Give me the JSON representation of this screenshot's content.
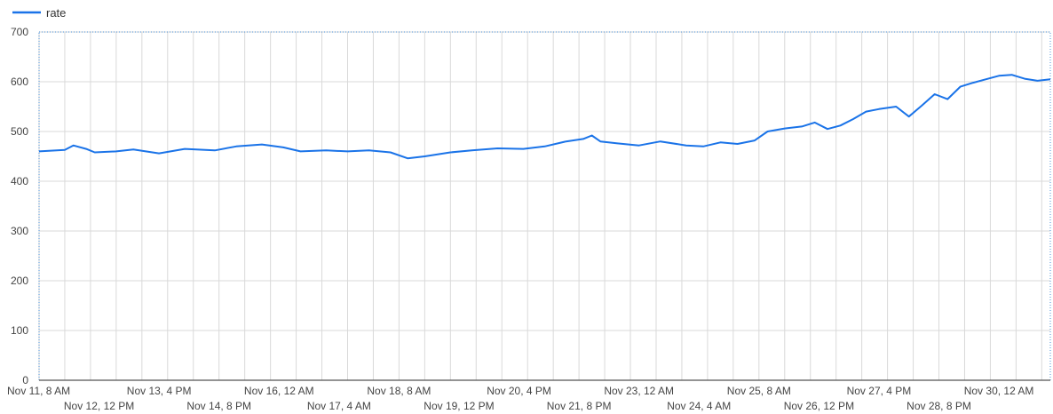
{
  "chart_data": {
    "type": "line",
    "title": "",
    "xlabel": "",
    "ylabel": "",
    "ylim": [
      0,
      700
    ],
    "yticks": [
      0,
      100,
      200,
      300,
      400,
      500,
      600,
      700
    ],
    "grid": true,
    "legend_position": "top-left",
    "colors": {
      "series": "#1a73e8"
    },
    "x_tick_labels": [
      "Nov 11, 8 AM",
      "Nov 12, 12 PM",
      "Nov 13, 4 PM",
      "Nov 14, 8 PM",
      "Nov 16, 12 AM",
      "Nov 17, 4 AM",
      "Nov 18, 8 AM",
      "Nov 19, 12 PM",
      "Nov 20, 4 PM",
      "Nov 21, 8 PM",
      "Nov 23, 12 AM",
      "Nov 24, 4 AM",
      "Nov 25, 8 AM",
      "Nov 26, 12 PM",
      "Nov 27, 4 PM",
      "Nov 28, 8 PM",
      "Nov 30, 12 AM"
    ],
    "x_start": "2020-11-11T08:00",
    "x_end": "2020-12-01T00:00",
    "x_step_hours": 2,
    "series": [
      {
        "name": "rate",
        "points": [
          [
            "2020-11-11T08:00",
            460
          ],
          [
            "2020-11-11T20:00",
            463
          ],
          [
            "2020-11-12T00:00",
            472
          ],
          [
            "2020-11-12T06:00",
            465
          ],
          [
            "2020-11-12T10:00",
            458
          ],
          [
            "2020-11-12T20:00",
            460
          ],
          [
            "2020-11-13T04:00",
            464
          ],
          [
            "2020-11-13T16:00",
            456
          ],
          [
            "2020-11-14T04:00",
            465
          ],
          [
            "2020-11-14T18:00",
            462
          ],
          [
            "2020-11-15T04:00",
            470
          ],
          [
            "2020-11-15T16:00",
            474
          ],
          [
            "2020-11-16T02:00",
            468
          ],
          [
            "2020-11-16T10:00",
            460
          ],
          [
            "2020-11-16T22:00",
            462
          ],
          [
            "2020-11-17T08:00",
            460
          ],
          [
            "2020-11-17T18:00",
            462
          ],
          [
            "2020-11-18T04:00",
            458
          ],
          [
            "2020-11-18T12:00",
            446
          ],
          [
            "2020-11-18T20:00",
            450
          ],
          [
            "2020-11-19T08:00",
            458
          ],
          [
            "2020-11-19T18:00",
            462
          ],
          [
            "2020-11-20T06:00",
            466
          ],
          [
            "2020-11-20T18:00",
            465
          ],
          [
            "2020-11-21T04:00",
            470
          ],
          [
            "2020-11-21T14:00",
            480
          ],
          [
            "2020-11-21T22:00",
            485
          ],
          [
            "2020-11-22T02:00",
            492
          ],
          [
            "2020-11-22T06:00",
            480
          ],
          [
            "2020-11-22T14:00",
            476
          ],
          [
            "2020-11-23T00:00",
            472
          ],
          [
            "2020-11-23T10:00",
            480
          ],
          [
            "2020-11-23T22:00",
            472
          ],
          [
            "2020-11-24T06:00",
            470
          ],
          [
            "2020-11-24T14:00",
            478
          ],
          [
            "2020-11-24T22:00",
            475
          ],
          [
            "2020-11-25T06:00",
            482
          ],
          [
            "2020-11-25T12:00",
            500
          ],
          [
            "2020-11-25T20:00",
            506
          ],
          [
            "2020-11-26T04:00",
            510
          ],
          [
            "2020-11-26T10:00",
            518
          ],
          [
            "2020-11-26T16:00",
            505
          ],
          [
            "2020-11-26T22:00",
            512
          ],
          [
            "2020-11-27T04:00",
            525
          ],
          [
            "2020-11-27T10:00",
            540
          ],
          [
            "2020-11-27T16:00",
            545
          ],
          [
            "2020-11-28T00:00",
            550
          ],
          [
            "2020-11-28T06:00",
            530
          ],
          [
            "2020-11-28T12:00",
            552
          ],
          [
            "2020-11-28T18:00",
            575
          ],
          [
            "2020-11-29T00:00",
            565
          ],
          [
            "2020-11-29T06:00",
            590
          ],
          [
            "2020-11-29T12:00",
            598
          ],
          [
            "2020-11-29T18:00",
            605
          ],
          [
            "2020-11-30T00:00",
            612
          ],
          [
            "2020-11-30T06:00",
            614
          ],
          [
            "2020-11-30T12:00",
            606
          ],
          [
            "2020-11-30T18:00",
            602
          ],
          [
            "2020-12-01T00:00",
            605
          ]
        ]
      }
    ]
  }
}
